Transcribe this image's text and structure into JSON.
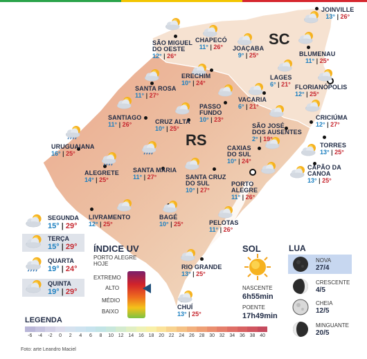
{
  "cities": [
    {
      "id": "joinville",
      "name": "JOINVILLE",
      "min": "13°",
      "max": "26°"
    },
    {
      "id": "chapeco",
      "name": "CHAPECÓ",
      "min": "11°",
      "max": "26°"
    },
    {
      "id": "sao-miguel",
      "name": "SÃO MIGUEL\nDO OESTE",
      "min": "12°",
      "max": "26°"
    },
    {
      "id": "joacaba",
      "name": "JOAÇABA",
      "min": "9°",
      "max": "25°"
    },
    {
      "id": "blumenau",
      "name": "BLUMENAU",
      "min": "11°",
      "max": "25°"
    },
    {
      "id": "lages",
      "name": "LAGES",
      "min": "6°",
      "max": "21°"
    },
    {
      "id": "florianopolis",
      "name": "FLORIANÓPOLIS",
      "min": "12°",
      "max": "25°"
    },
    {
      "id": "erechim",
      "name": "ERECHIM",
      "min": "10°",
      "max": "24°"
    },
    {
      "id": "santa-rosa",
      "name": "SANTA ROSA",
      "min": "11°",
      "max": "27°"
    },
    {
      "id": "vacaria",
      "name": "VACARIA",
      "min": "6°",
      "max": "21°"
    },
    {
      "id": "passo-fundo",
      "name": "PASSO\nFUNDO",
      "min": "10°",
      "max": "23°"
    },
    {
      "id": "santiago",
      "name": "SANTIAGO",
      "min": "11°",
      "max": "26°"
    },
    {
      "id": "cruz-alta",
      "name": "CRUZ ALTA",
      "min": "10°",
      "max": "25°"
    },
    {
      "id": "sao-jose",
      "name": "SÃO JOSÉ\nDOS AUSENTES",
      "min": "2°",
      "max": "19°"
    },
    {
      "id": "criciuma",
      "name": "CRICIÚMA",
      "min": "12°",
      "max": "27°"
    },
    {
      "id": "uruguaiana",
      "name": "URUGUAIANA",
      "min": "16°",
      "max": "25°"
    },
    {
      "id": "torres",
      "name": "TORRES",
      "min": "13°",
      "max": "25°"
    },
    {
      "id": "caxias",
      "name": "CAXIAS\nDO SUL",
      "min": "10°",
      "max": "24°"
    },
    {
      "id": "alegrete",
      "name": "ALEGRETE",
      "min": "14°",
      "max": "25°"
    },
    {
      "id": "santa-maria",
      "name": "SANTA MARIA",
      "min": "11°",
      "max": "27°"
    },
    {
      "id": "capao",
      "name": "CAPÃO DA\nCANOA",
      "min": "13°",
      "max": "25°"
    },
    {
      "id": "santa-cruz",
      "name": "SANTA CRUZ\nDO SUL",
      "min": "10°",
      "max": "27°"
    },
    {
      "id": "porto-alegre",
      "name": "PORTO\nALEGRE",
      "min": "11°",
      "max": "26°"
    },
    {
      "id": "livramento",
      "name": "LIVRAMENTO",
      "min": "12°",
      "max": "25°"
    },
    {
      "id": "bage",
      "name": "BAGÉ",
      "min": "10°",
      "max": "25°"
    },
    {
      "id": "pelotas",
      "name": "PELOTAS",
      "min": "11°",
      "max": "26°"
    },
    {
      "id": "rio-grande",
      "name": "RIO GRANDE",
      "min": "13°",
      "max": "25°"
    },
    {
      "id": "chui",
      "name": "CHUÍ",
      "min": "13°",
      "max": "25°"
    }
  ],
  "states": {
    "sc": "SC",
    "rs": "RS"
  },
  "forecast": [
    {
      "day": "SEGUNDA",
      "min": "15°",
      "max": "29°",
      "icon": "partly-cloudy-icon"
    },
    {
      "day": "TERÇA",
      "min": "15°",
      "max": "29°",
      "icon": "partly-cloudy-icon"
    },
    {
      "day": "QUARTA",
      "min": "19°",
      "max": "24°",
      "icon": "storm-icon"
    },
    {
      "day": "QUINTA",
      "min": "19°",
      "max": "29°",
      "icon": "partly-cloudy-icon"
    }
  ],
  "uv": {
    "title": "ÍNDICE UV",
    "subtitle": "PORTO ALEGRE\nHOJE",
    "levels": [
      "EXTREMO",
      "ALTO",
      "MÉDIO",
      "BAIXO"
    ],
    "current": "ALTO"
  },
  "sun": {
    "title": "SOL",
    "rise_label": "NASCENTE",
    "rise_time": "6h55min",
    "set_label": "POENTE",
    "set_time": "17h49min"
  },
  "moon": {
    "title": "LUA",
    "phases": [
      {
        "name": "NOVA",
        "date": "27/4"
      },
      {
        "name": "CRESCENTE",
        "date": "4/5"
      },
      {
        "name": "CHEIA",
        "date": "12/5"
      },
      {
        "name": "MINGUANTE",
        "date": "20/5"
      }
    ]
  },
  "legend": {
    "title": "LEGENDA",
    "ticks": [
      "-6",
      "-4",
      "-2",
      "0",
      "2",
      "4",
      "6",
      "8",
      "10",
      "12",
      "14",
      "16",
      "18",
      "20",
      "22",
      "24",
      "26",
      "28",
      "30",
      "32",
      "34",
      "36",
      "38",
      "40"
    ],
    "colors": [
      "#b9b6d8",
      "#c5c3df",
      "#d2d0e6",
      "#dcdcec",
      "#d6e2ef",
      "#cfe3f0",
      "#c7e3ee",
      "#c2e4e6",
      "#c8e7dc",
      "#d4ebcf",
      "#e1efc3",
      "#eef2b6",
      "#f8f0a8",
      "#fbe39a",
      "#f8d38f",
      "#f5c285",
      "#f2b07d",
      "#eea075",
      "#ea8f6f",
      "#e57f6b",
      "#df6f66",
      "#d86262",
      "#d05660",
      "#c54b5e"
    ]
  },
  "credit": "Foto: arte Leandro Maciel",
  "colors": {
    "min": "#1b7fc0",
    "max": "#c6262e",
    "land": "#e8b092",
    "sc_land": "#f6e2d1",
    "sea": "#ffffff",
    "moon_highlight": "#c7d7f0"
  }
}
